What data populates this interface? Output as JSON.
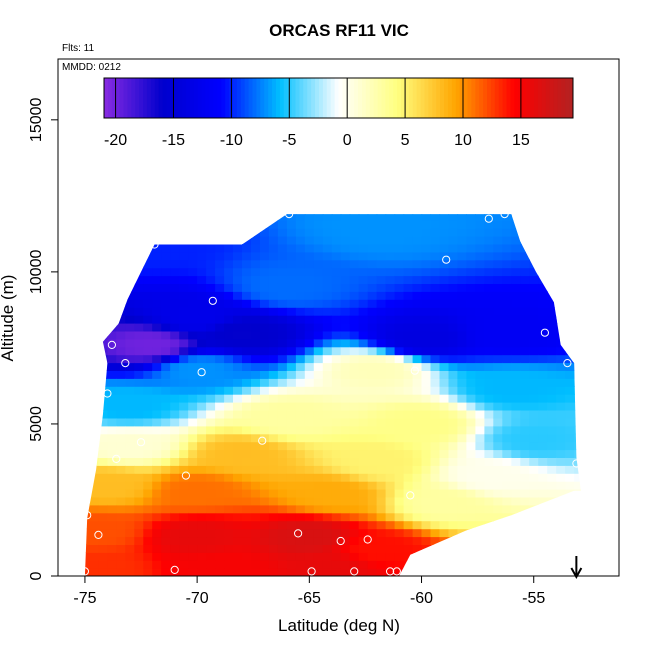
{
  "chart_data": {
    "type": "heatmap",
    "title": "ORCAS RF11 VIC",
    "flights_label": "Flts: 11",
    "date_label": "MMDD: 0212",
    "xlabel": "Latitude (deg N)",
    "ylabel": "Altitude (m)",
    "xlim": [
      -76.2,
      -51.2
    ],
    "ylim": [
      0,
      17000
    ],
    "x_ticks": [
      -75,
      -70,
      -65,
      -60,
      -55
    ],
    "x_tick_labels": [
      "-75",
      "-70",
      "-65",
      "-60",
      "-55"
    ],
    "y_ticks": [
      0,
      5000,
      10000,
      15000
    ],
    "y_tick_labels": [
      "0",
      "5000",
      "10000",
      "15000"
    ],
    "colorbar": {
      "range": [
        -21,
        19.5
      ],
      "ticks": [
        -20,
        -15,
        -10,
        -5,
        0,
        5,
        10,
        15
      ],
      "tick_labels": [
        "-20",
        "-15",
        "-10",
        "-5",
        "0",
        "5",
        "10",
        "15"
      ],
      "colors": [
        "#8a2be2",
        "#0000cd",
        "#0000ff",
        "#00bfff",
        "#ffffff",
        "#ffff80",
        "#ffa500",
        "#ff0000",
        "#b22222"
      ]
    },
    "field_boundary": {
      "top_edge": [
        [
          -74.2,
          7700
        ],
        [
          -73.5,
          8300
        ],
        [
          -73.1,
          9100
        ],
        [
          -72.5,
          10000
        ],
        [
          -71.9,
          10900
        ],
        [
          -68.0,
          10900
        ],
        [
          -66.0,
          11900
        ],
        [
          -56.0,
          11900
        ],
        [
          -55.6,
          11000
        ],
        [
          -54.9,
          10000
        ],
        [
          -54.1,
          9000
        ],
        [
          -53.8,
          7600
        ],
        [
          -53.2,
          7000
        ],
        [
          -53.1,
          3900
        ],
        [
          -52.9,
          2800
        ]
      ],
      "bottom_edge": [
        [
          -75.0,
          0
        ],
        [
          -61.0,
          0
        ],
        [
          -60.5,
          700
        ],
        [
          -58.0,
          1500
        ],
        [
          -56.0,
          2000
        ],
        [
          -53.2,
          2800
        ]
      ],
      "left_edge": [
        [
          -75.0,
          0
        ],
        [
          -74.9,
          1900
        ],
        [
          -74.5,
          3500
        ],
        [
          -74.2,
          5300
        ],
        [
          -74.0,
          7000
        ],
        [
          -74.2,
          7700
        ]
      ]
    },
    "temperature_field_description_points": [
      {
        "lat": -72,
        "alt": 11000,
        "value": -10
      },
      {
        "lat": -62,
        "alt": 11500,
        "value": -7
      },
      {
        "lat": -66,
        "alt": 9500,
        "value": -8
      },
      {
        "lat": -70,
        "alt": 8500,
        "value": -13
      },
      {
        "lat": -68,
        "alt": 8000,
        "value": -16
      },
      {
        "lat": -72,
        "alt": 7600,
        "value": -20
      },
      {
        "lat": -60,
        "alt": 7800,
        "value": -14
      },
      {
        "lat": -56,
        "alt": 8000,
        "value": -12
      },
      {
        "lat": -70,
        "alt": 6800,
        "value": -7
      },
      {
        "lat": -62,
        "alt": 6800,
        "value": 2
      },
      {
        "lat": -56,
        "alt": 6200,
        "value": -6
      },
      {
        "lat": -73,
        "alt": 5600,
        "value": -6
      },
      {
        "lat": -66,
        "alt": 5200,
        "value": 3
      },
      {
        "lat": -60,
        "alt": 5000,
        "value": 4
      },
      {
        "lat": -55,
        "alt": 4500,
        "value": -5
      },
      {
        "lat": -73,
        "alt": 4300,
        "value": 1
      },
      {
        "lat": -68,
        "alt": 4000,
        "value": 8
      },
      {
        "lat": -62,
        "alt": 3800,
        "value": 5
      },
      {
        "lat": -57,
        "alt": 3300,
        "value": 0
      },
      {
        "lat": -74,
        "alt": 3000,
        "value": 8
      },
      {
        "lat": -70,
        "alt": 2800,
        "value": 11
      },
      {
        "lat": -64,
        "alt": 2700,
        "value": 9
      },
      {
        "lat": -59,
        "alt": 2400,
        "value": 3
      },
      {
        "lat": -74.5,
        "alt": 1500,
        "value": 12
      },
      {
        "lat": -70,
        "alt": 1300,
        "value": 16
      },
      {
        "lat": -65,
        "alt": 1300,
        "value": 17
      },
      {
        "lat": -62,
        "alt": 900,
        "value": 14
      },
      {
        "lat": -74.5,
        "alt": 300,
        "value": 13
      },
      {
        "lat": -69,
        "alt": 300,
        "value": 15
      },
      {
        "lat": -64,
        "alt": 300,
        "value": 16
      }
    ],
    "observation_points": [
      [
        -75.0,
        150
      ],
      [
        -74.9,
        2000
      ],
      [
        -74.4,
        1350
      ],
      [
        -73.6,
        3850
      ],
      [
        -74.0,
        6000
      ],
      [
        -73.8,
        7600
      ],
      [
        -73.2,
        7000
      ],
      [
        -72.5,
        4400
      ],
      [
        -71.9,
        10900
      ],
      [
        -71.0,
        200
      ],
      [
        -70.5,
        3300
      ],
      [
        -69.8,
        6700
      ],
      [
        -69.3,
        9050
      ],
      [
        -67.1,
        4450
      ],
      [
        -65.5,
        1400
      ],
      [
        -65.9,
        11900
      ],
      [
        -64.9,
        150
      ],
      [
        -63.6,
        1150
      ],
      [
        -63.0,
        150
      ],
      [
        -62.4,
        1200
      ],
      [
        -61.4,
        150
      ],
      [
        -61.1,
        150
      ],
      [
        -60.5,
        2650
      ],
      [
        -60.3,
        6750
      ],
      [
        -58.9,
        10400
      ],
      [
        -57.0,
        11750
      ],
      [
        -56.3,
        11900
      ],
      [
        -54.5,
        8000
      ],
      [
        -53.5,
        7000
      ],
      [
        -53.1,
        3700
      ]
    ],
    "profile_arrow_lat": -53.1,
    "grid": false
  }
}
